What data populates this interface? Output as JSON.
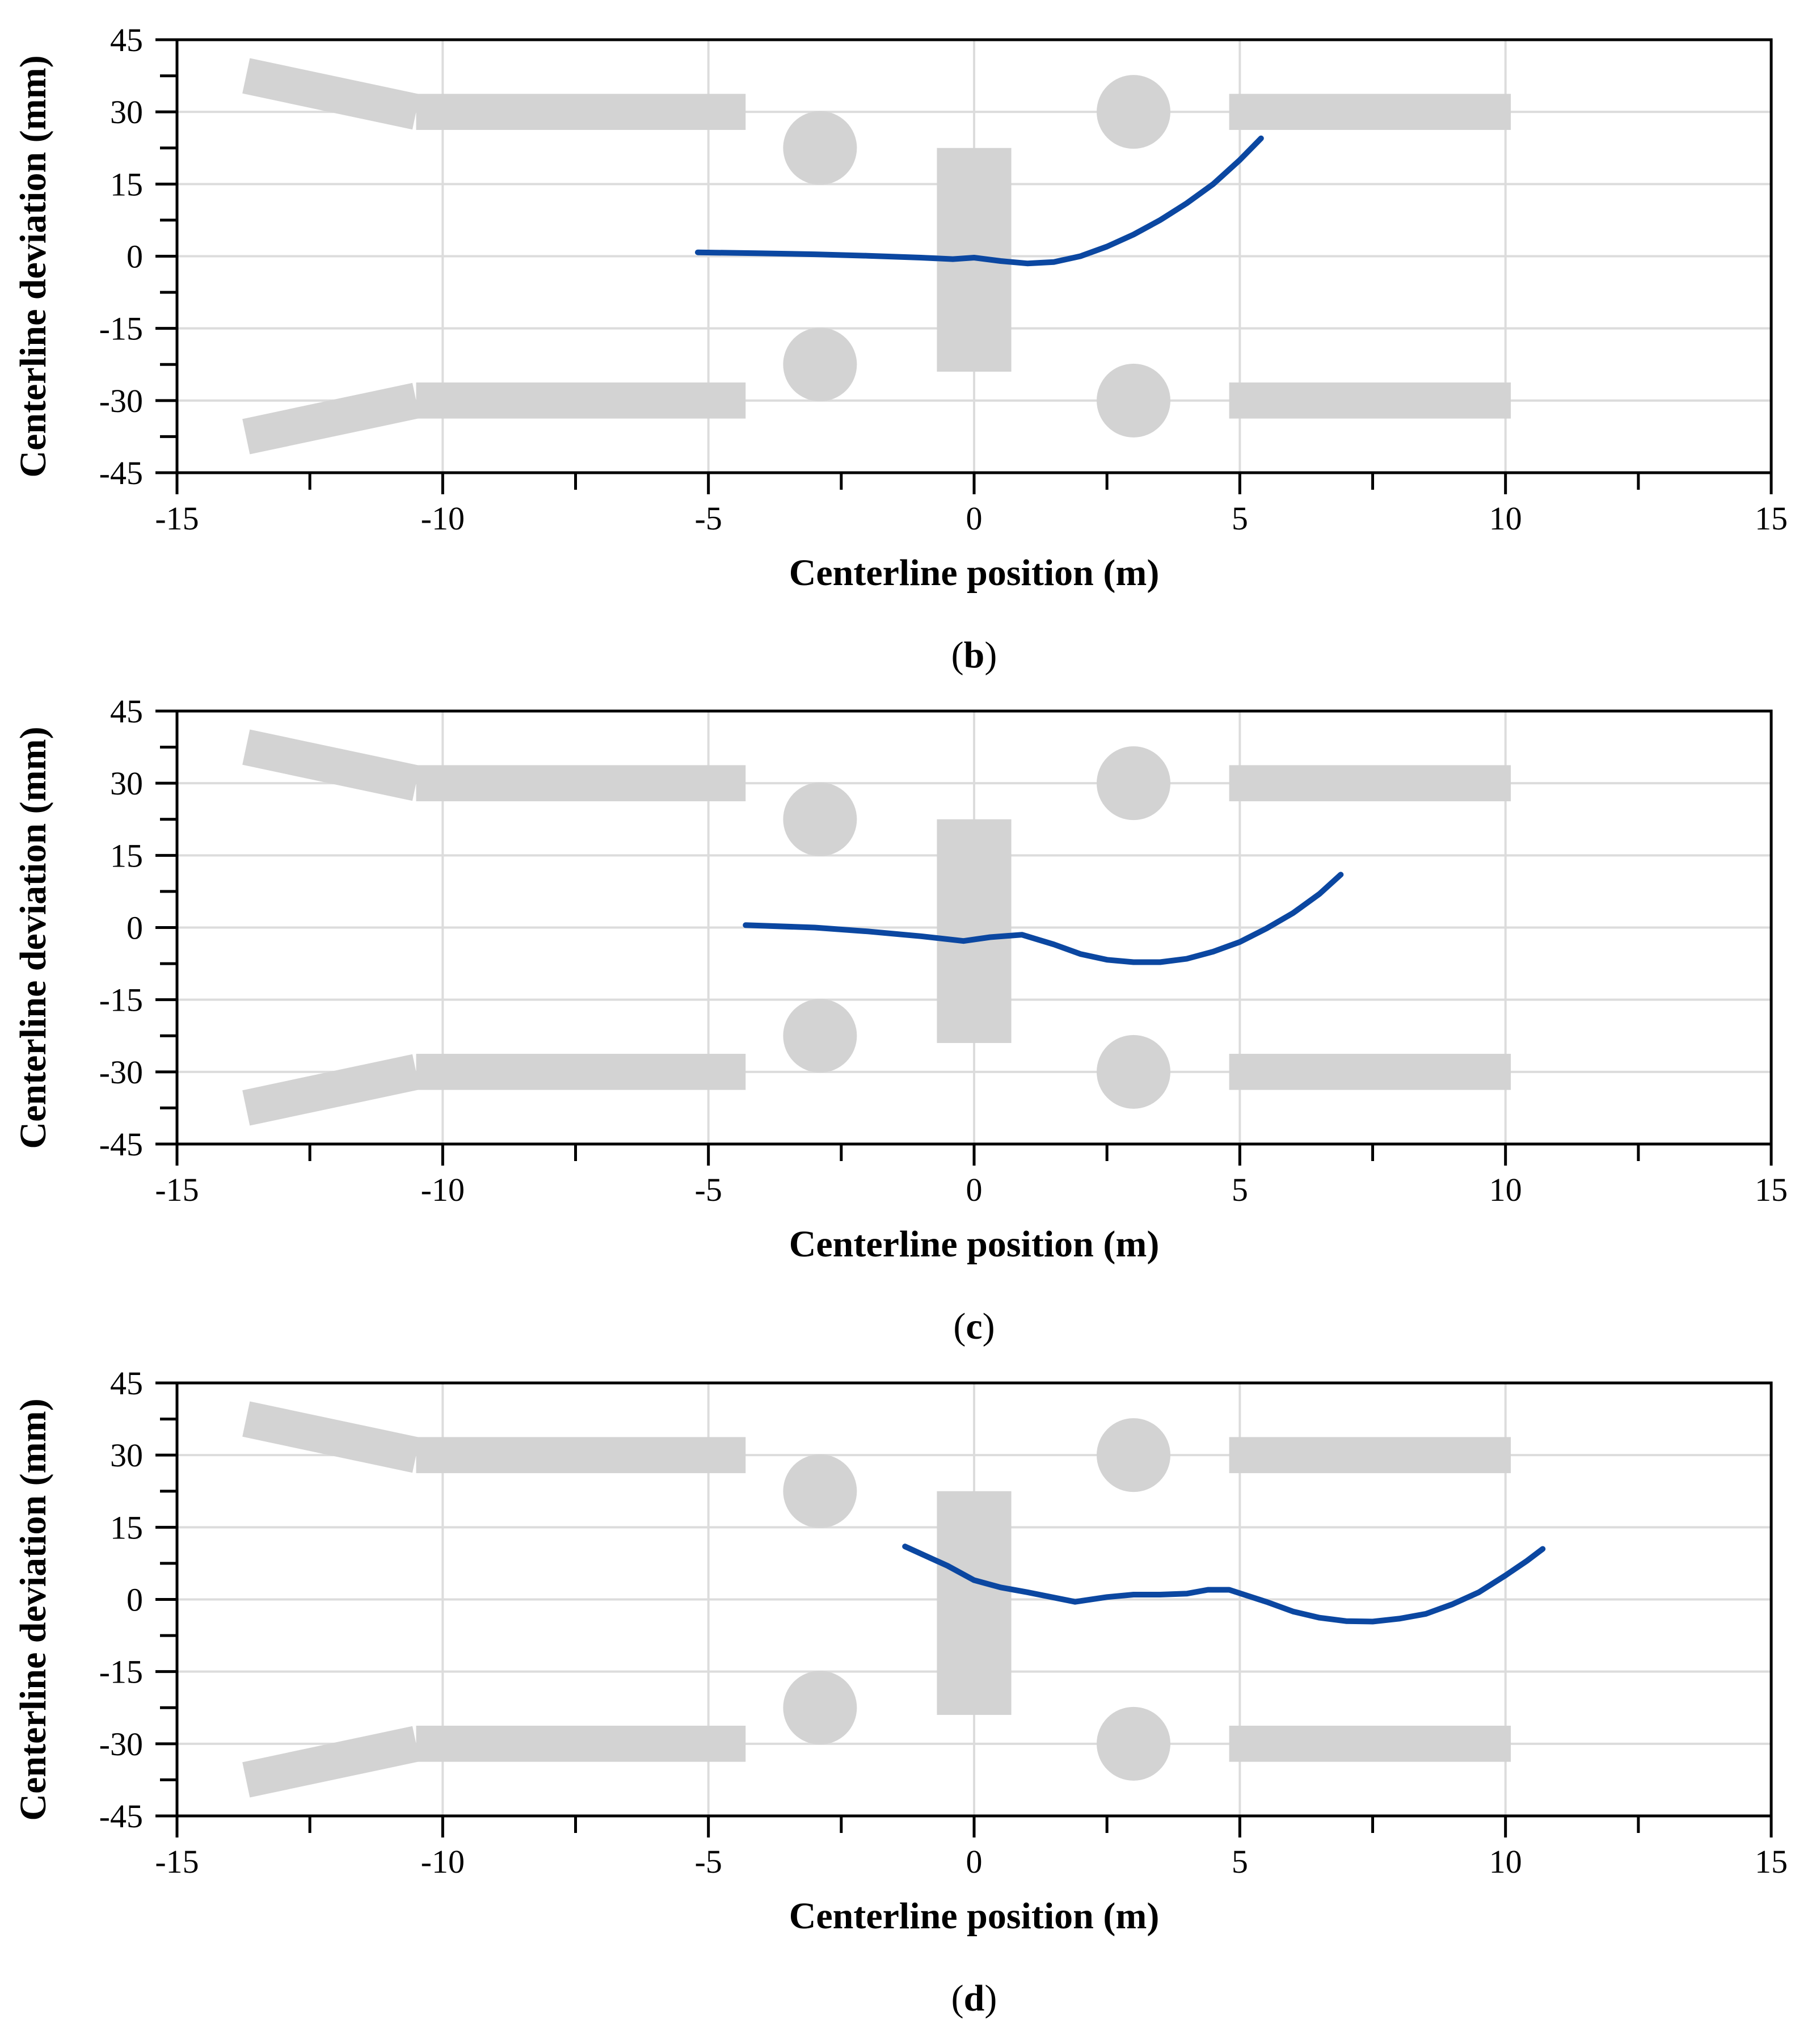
{
  "figure": {
    "panels": [
      "b",
      "c",
      "d"
    ]
  },
  "colors": {
    "series": "#0b47a1",
    "obstacle": "#d3d3d3",
    "grid": "#dcdcdc",
    "axis": "#000000"
  },
  "chart_data": [
    {
      "type": "line",
      "panel": "b",
      "caption_prefix": "(",
      "caption_letter": "b",
      "caption_suffix": ")",
      "xlabel": "Centerline position (m)",
      "ylabel": "Centerline deviation (mm)",
      "xlim": [
        -15,
        15
      ],
      "ylim": [
        -45,
        45
      ],
      "xticks": [
        -15,
        -10,
        -5,
        0,
        5,
        10,
        15
      ],
      "xtick_labels": [
        "-15",
        "-10",
        "-5",
        "0",
        "5",
        "10",
        "15"
      ],
      "yticks": [
        -45,
        -30,
        -15,
        0,
        15,
        30,
        45
      ],
      "ytick_labels": [
        "-45",
        "-30",
        "-15",
        "0",
        "15",
        "30",
        "45"
      ],
      "grid": true,
      "series": [
        {
          "name": "centerline deviation",
          "x": [
            -5.2,
            -4,
            -3,
            -2,
            -1,
            -0.4,
            0,
            0.5,
            1,
            1.5,
            2,
            2.5,
            3,
            3.5,
            4,
            4.5,
            5,
            5.4
          ],
          "y": [
            0.8,
            0.6,
            0.4,
            0.1,
            -0.3,
            -0.6,
            -0.3,
            -1.0,
            -1.5,
            -1.2,
            0.0,
            2.0,
            4.5,
            7.5,
            11.0,
            15.0,
            20.0,
            24.5
          ]
        }
      ],
      "obstacles": {
        "walls": [
          {
            "x1": -10.5,
            "x2": -4.3,
            "y": 30
          },
          {
            "x1": -10.5,
            "x2": -4.3,
            "y": -30
          },
          {
            "x1": 4.8,
            "x2": 10.1,
            "y": 30
          },
          {
            "x1": 4.8,
            "x2": 10.1,
            "y": -30
          }
        ],
        "angled_walls": [
          {
            "x1": -13.7,
            "y1": 37.5,
            "x2": -10.5,
            "y2": 30
          },
          {
            "x1": -13.7,
            "y1": -37.5,
            "x2": -10.5,
            "y2": -30
          }
        ],
        "circles": [
          {
            "x": -2.9,
            "y": 22.5
          },
          {
            "x": -2.9,
            "y": -22.5
          },
          {
            "x": 3.0,
            "y": 30
          },
          {
            "x": 3.0,
            "y": -30
          }
        ],
        "blocks": [
          {
            "x1": -0.7,
            "x2": 0.7,
            "y1": -24,
            "y2": 22.5
          }
        ]
      }
    },
    {
      "type": "line",
      "panel": "c",
      "caption_prefix": "(",
      "caption_letter": "c",
      "caption_suffix": ")",
      "xlabel": "Centerline position (m)",
      "ylabel": "Centerline deviation (mm)",
      "xlim": [
        -15,
        15
      ],
      "ylim": [
        -45,
        45
      ],
      "xticks": [
        -15,
        -10,
        -5,
        0,
        5,
        10,
        15
      ],
      "xtick_labels": [
        "-15",
        "-10",
        "-5",
        "0",
        "5",
        "10",
        "15"
      ],
      "yticks": [
        -45,
        -30,
        -15,
        0,
        15,
        30,
        45
      ],
      "ytick_labels": [
        "-45",
        "-30",
        "-15",
        "0",
        "15",
        "30",
        "45"
      ],
      "grid": true,
      "series": [
        {
          "name": "centerline deviation",
          "x": [
            -4.3,
            -3,
            -2,
            -1,
            -0.2,
            0.3,
            0.9,
            1.5,
            2,
            2.5,
            3,
            3.5,
            4,
            4.5,
            5,
            5.5,
            6,
            6.5,
            6.9
          ],
          "y": [
            0.5,
            0.0,
            -0.8,
            -1.8,
            -2.8,
            -2.0,
            -1.5,
            -3.5,
            -5.5,
            -6.7,
            -7.2,
            -7.2,
            -6.5,
            -5.0,
            -3.0,
            -0.2,
            3.0,
            7.0,
            11.0
          ]
        }
      ],
      "obstacles": {
        "walls": [
          {
            "x1": -10.5,
            "x2": -4.3,
            "y": 30
          },
          {
            "x1": -10.5,
            "x2": -4.3,
            "y": -30
          },
          {
            "x1": 4.8,
            "x2": 10.1,
            "y": 30
          },
          {
            "x1": 4.8,
            "x2": 10.1,
            "y": -30
          }
        ],
        "angled_walls": [
          {
            "x1": -13.7,
            "y1": 37.5,
            "x2": -10.5,
            "y2": 30
          },
          {
            "x1": -13.7,
            "y1": -37.5,
            "x2": -10.5,
            "y2": -30
          }
        ],
        "circles": [
          {
            "x": -2.9,
            "y": 22.5
          },
          {
            "x": -2.9,
            "y": -22.5
          },
          {
            "x": 3.0,
            "y": 30
          },
          {
            "x": 3.0,
            "y": -30
          }
        ],
        "blocks": [
          {
            "x1": -0.7,
            "x2": 0.7,
            "y1": -24,
            "y2": 22.5
          }
        ]
      }
    },
    {
      "type": "line",
      "panel": "d",
      "caption_prefix": "(",
      "caption_letter": "d",
      "caption_suffix": ")",
      "xlabel": "Centerline position (m)",
      "ylabel": "Centerline deviation (mm)",
      "xlim": [
        -15,
        15
      ],
      "ylim": [
        -45,
        45
      ],
      "xticks": [
        -15,
        -10,
        -5,
        0,
        5,
        10,
        15
      ],
      "xtick_labels": [
        "-15",
        "-10",
        "-5",
        "0",
        "5",
        "10",
        "15"
      ],
      "yticks": [
        -45,
        -30,
        -15,
        0,
        15,
        30,
        45
      ],
      "ytick_labels": [
        "-45",
        "-30",
        "-15",
        "0",
        "15",
        "30",
        "45"
      ],
      "grid": true,
      "series": [
        {
          "name": "centerline deviation",
          "x": [
            -1.3,
            -0.5,
            0,
            0.5,
            1,
            1.9,
            2.5,
            3,
            3.5,
            4,
            4.4,
            4.8,
            5.5,
            6,
            6.5,
            7,
            7.5,
            8,
            8.5,
            9,
            9.5,
            10,
            10.4,
            10.7
          ],
          "y": [
            11.0,
            7.0,
            4.0,
            2.5,
            1.5,
            -0.5,
            0.5,
            1.0,
            1.0,
            1.2,
            2.0,
            2.0,
            -0.5,
            -2.5,
            -3.8,
            -4.5,
            -4.6,
            -4.0,
            -3.0,
            -1.0,
            1.5,
            5.0,
            8.0,
            10.5
          ]
        }
      ],
      "obstacles": {
        "walls": [
          {
            "x1": -10.5,
            "x2": -4.3,
            "y": 30
          },
          {
            "x1": -10.5,
            "x2": -4.3,
            "y": -30
          },
          {
            "x1": 4.8,
            "x2": 10.1,
            "y": 30
          },
          {
            "x1": 4.8,
            "x2": 10.1,
            "y": -30
          }
        ],
        "angled_walls": [
          {
            "x1": -13.7,
            "y1": 37.5,
            "x2": -10.5,
            "y2": 30
          },
          {
            "x1": -13.7,
            "y1": -37.5,
            "x2": -10.5,
            "y2": -30
          }
        ],
        "circles": [
          {
            "x": -2.9,
            "y": 22.5
          },
          {
            "x": -2.9,
            "y": -22.5
          },
          {
            "x": 3.0,
            "y": 30
          },
          {
            "x": 3.0,
            "y": -30
          }
        ],
        "blocks": [
          {
            "x1": -0.7,
            "x2": 0.7,
            "y1": -24,
            "y2": 22.5
          }
        ]
      }
    }
  ]
}
